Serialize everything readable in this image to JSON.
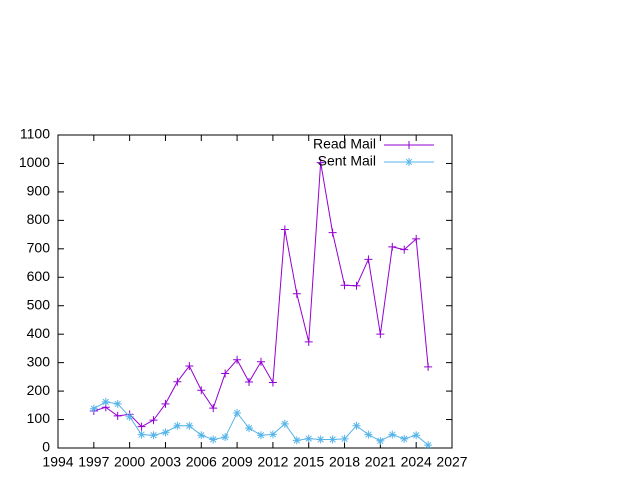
{
  "chart_data": {
    "type": "line",
    "x": [
      1997,
      1998,
      1999,
      2000,
      2001,
      2002,
      2003,
      2004,
      2005,
      2006,
      2007,
      2008,
      2009,
      2010,
      2011,
      2012,
      2013,
      2014,
      2015,
      2016,
      2017,
      2018,
      2019,
      2020,
      2021,
      2022,
      2023,
      2024,
      2025
    ],
    "series": [
      {
        "name": "Read Mail",
        "color": "#9400d3",
        "marker": "plus",
        "values": [
          130,
          143,
          113,
          118,
          75,
          98,
          155,
          233,
          288,
          203,
          140,
          262,
          310,
          232,
          303,
          230,
          768,
          542,
          373,
          1003,
          757,
          572,
          570,
          663,
          400,
          707,
          697,
          735,
          285
        ]
      },
      {
        "name": "Sent Mail",
        "color": "#56b4e9",
        "marker": "star",
        "values": [
          138,
          162,
          155,
          110,
          47,
          45,
          55,
          78,
          78,
          45,
          30,
          38,
          123,
          70,
          45,
          48,
          85,
          27,
          33,
          30,
          30,
          32,
          78,
          47,
          25,
          47,
          32,
          45,
          10
        ]
      }
    ],
    "xlim": [
      1994,
      2027
    ],
    "xticks": [
      1994,
      1997,
      2000,
      2003,
      2006,
      2009,
      2012,
      2015,
      2018,
      2021,
      2024,
      2027
    ],
    "ylim": [
      0,
      1100
    ],
    "yticks": [
      0,
      100,
      200,
      300,
      400,
      500,
      600,
      700,
      800,
      900,
      1000,
      1100
    ],
    "grid": false,
    "legend": "top-right"
  }
}
